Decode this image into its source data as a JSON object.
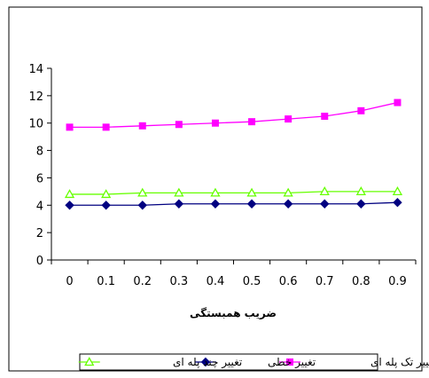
{
  "chart_data": {
    "type": "line",
    "title": "",
    "xlabel": "ضریب همبستگی",
    "ylabel": "",
    "categories": [
      "0",
      "0.1",
      "0.2",
      "0.3",
      "0.4",
      "0.5",
      "0.6",
      "0.7",
      "0.8",
      "0.9"
    ],
    "ylim": [
      0,
      14
    ],
    "yticks": [
      0,
      2,
      4,
      6,
      8,
      10,
      12,
      14
    ],
    "grid": false,
    "legend_position": "bottom",
    "series": [
      {
        "name": "تغییر تک پله ای",
        "values": [
          9.7,
          9.7,
          9.8,
          9.9,
          10.0,
          10.1,
          10.3,
          10.5,
          10.9,
          11.5
        ],
        "color": "#ff00ff",
        "marker": "square"
      },
      {
        "name": "تغییر خطی",
        "values": [
          4.0,
          4.0,
          4.0,
          4.1,
          4.1,
          4.1,
          4.1,
          4.1,
          4.1,
          4.2
        ],
        "color": "#000080",
        "marker": "diamond"
      },
      {
        "name": "تغییر چند پله ای",
        "values": [
          4.8,
          4.8,
          4.9,
          4.9,
          4.9,
          4.9,
          4.9,
          5.0,
          5.0,
          5.0
        ],
        "color": "#66ff00",
        "marker": "triangle"
      }
    ]
  }
}
